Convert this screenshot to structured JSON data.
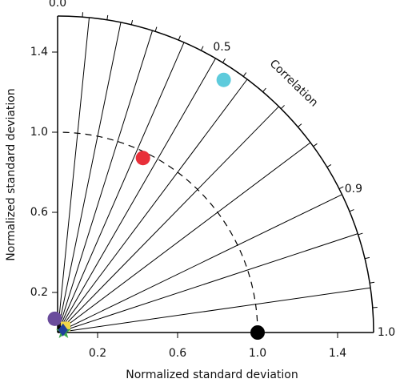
{
  "chart_data": {
    "type": "taylor",
    "x_label": "Normalized standard deviation",
    "y_label": "Normalized standard deviation",
    "correlation_label": "Correlation",
    "rlim": [
      0,
      1.58
    ],
    "xticks": [
      0.2,
      0.6,
      {
        "value": 1.0,
        "label": "1.0"
      },
      1.4
    ],
    "yticks": [
      0.2,
      0.6,
      {
        "value": 1.0,
        "label": "1.0"
      },
      1.4
    ],
    "correlation_ticks": [
      {
        "value": 0.0,
        "label": "0.0"
      },
      0.5,
      0.9,
      {
        "value": 1.0,
        "label": "1.0"
      }
    ],
    "correlation_lines": [
      0.1,
      0.2,
      0.3,
      0.4,
      0.5,
      0.6,
      0.7,
      0.8,
      0.9,
      0.95,
      0.99
    ],
    "points": [
      {
        "color": "#000000",
        "marker": "circle",
        "std": 1.0,
        "correlation": 1.0,
        "reference": true
      },
      {
        "color": "#e8303a",
        "marker": "circle",
        "std": 0.97,
        "correlation": 0.44
      },
      {
        "color": "#5ecbdc",
        "marker": "circle",
        "std": 1.51,
        "correlation": 0.55
      },
      {
        "color": "#6a4c9c",
        "marker": "circle",
        "std": 0.07,
        "correlation": -0.2
      },
      {
        "color": "#f0d84a",
        "marker": "square",
        "std": 0.05,
        "correlation": 0.8
      },
      {
        "color": "#3aa84a",
        "marker": "star",
        "std": 0.03,
        "correlation": 0.99
      },
      {
        "color": "#1f3f9a",
        "marker": "diamond",
        "std": 0.03,
        "correlation": 0.9
      }
    ]
  }
}
